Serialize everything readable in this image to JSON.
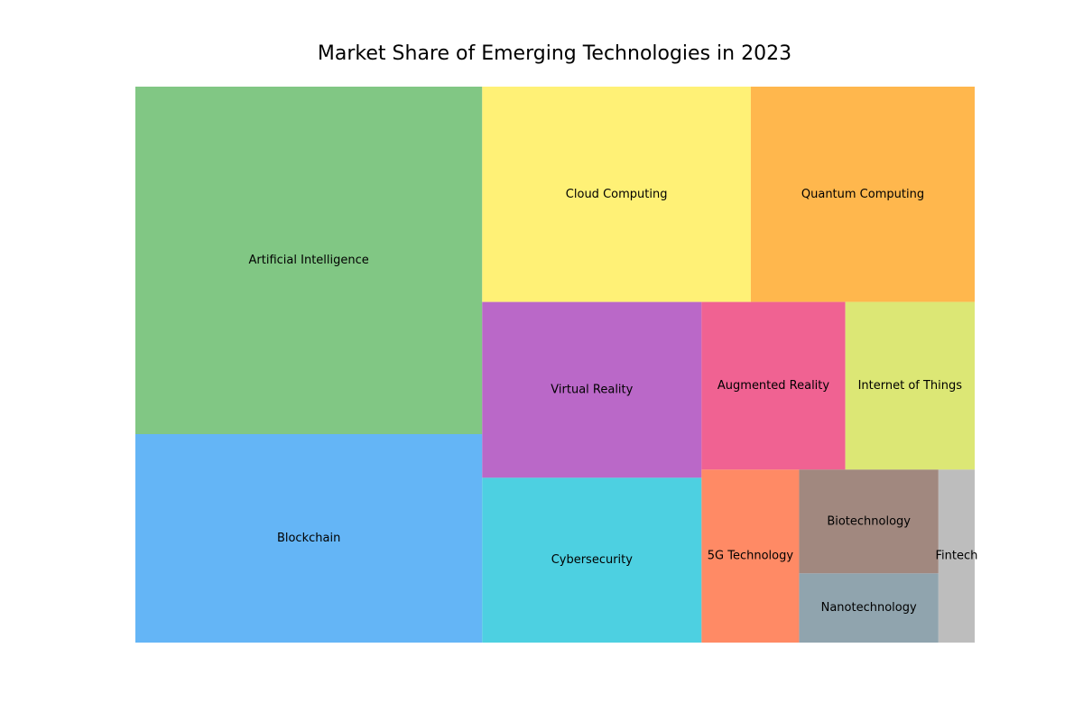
{
  "chart_data": {
    "type": "treemap",
    "title": "Market Share of Emerging Technologies in 2023",
    "series": [
      {
        "name": "Artificial Intelligence",
        "value": 25,
        "color": "#81c784"
      },
      {
        "name": "Blockchain",
        "value": 15,
        "color": "#64b5f6"
      },
      {
        "name": "Cloud Computing",
        "value": 12,
        "color": "#fff176"
      },
      {
        "name": "Quantum Computing",
        "value": 10,
        "color": "#ffb74d"
      },
      {
        "name": "Virtual Reality",
        "value": 8,
        "color": "#ba68c8"
      },
      {
        "name": "Cybersecurity",
        "value": 7.5,
        "color": "#4dd0e1"
      },
      {
        "name": "Augmented Reality",
        "value": 5,
        "color": "#f06292"
      },
      {
        "name": "Internet of Things",
        "value": 4.5,
        "color": "#dce775"
      },
      {
        "name": "5G Technology",
        "value": 3.5,
        "color": "#ff8a65"
      },
      {
        "name": "Biotechnology",
        "value": 3,
        "color": "#a1887f"
      },
      {
        "name": "Nanotechnology",
        "value": 2.0,
        "color": "#90a4ae"
      },
      {
        "name": "Fintech",
        "value": 1.3,
        "color": "#bdbdbd"
      }
    ]
  }
}
